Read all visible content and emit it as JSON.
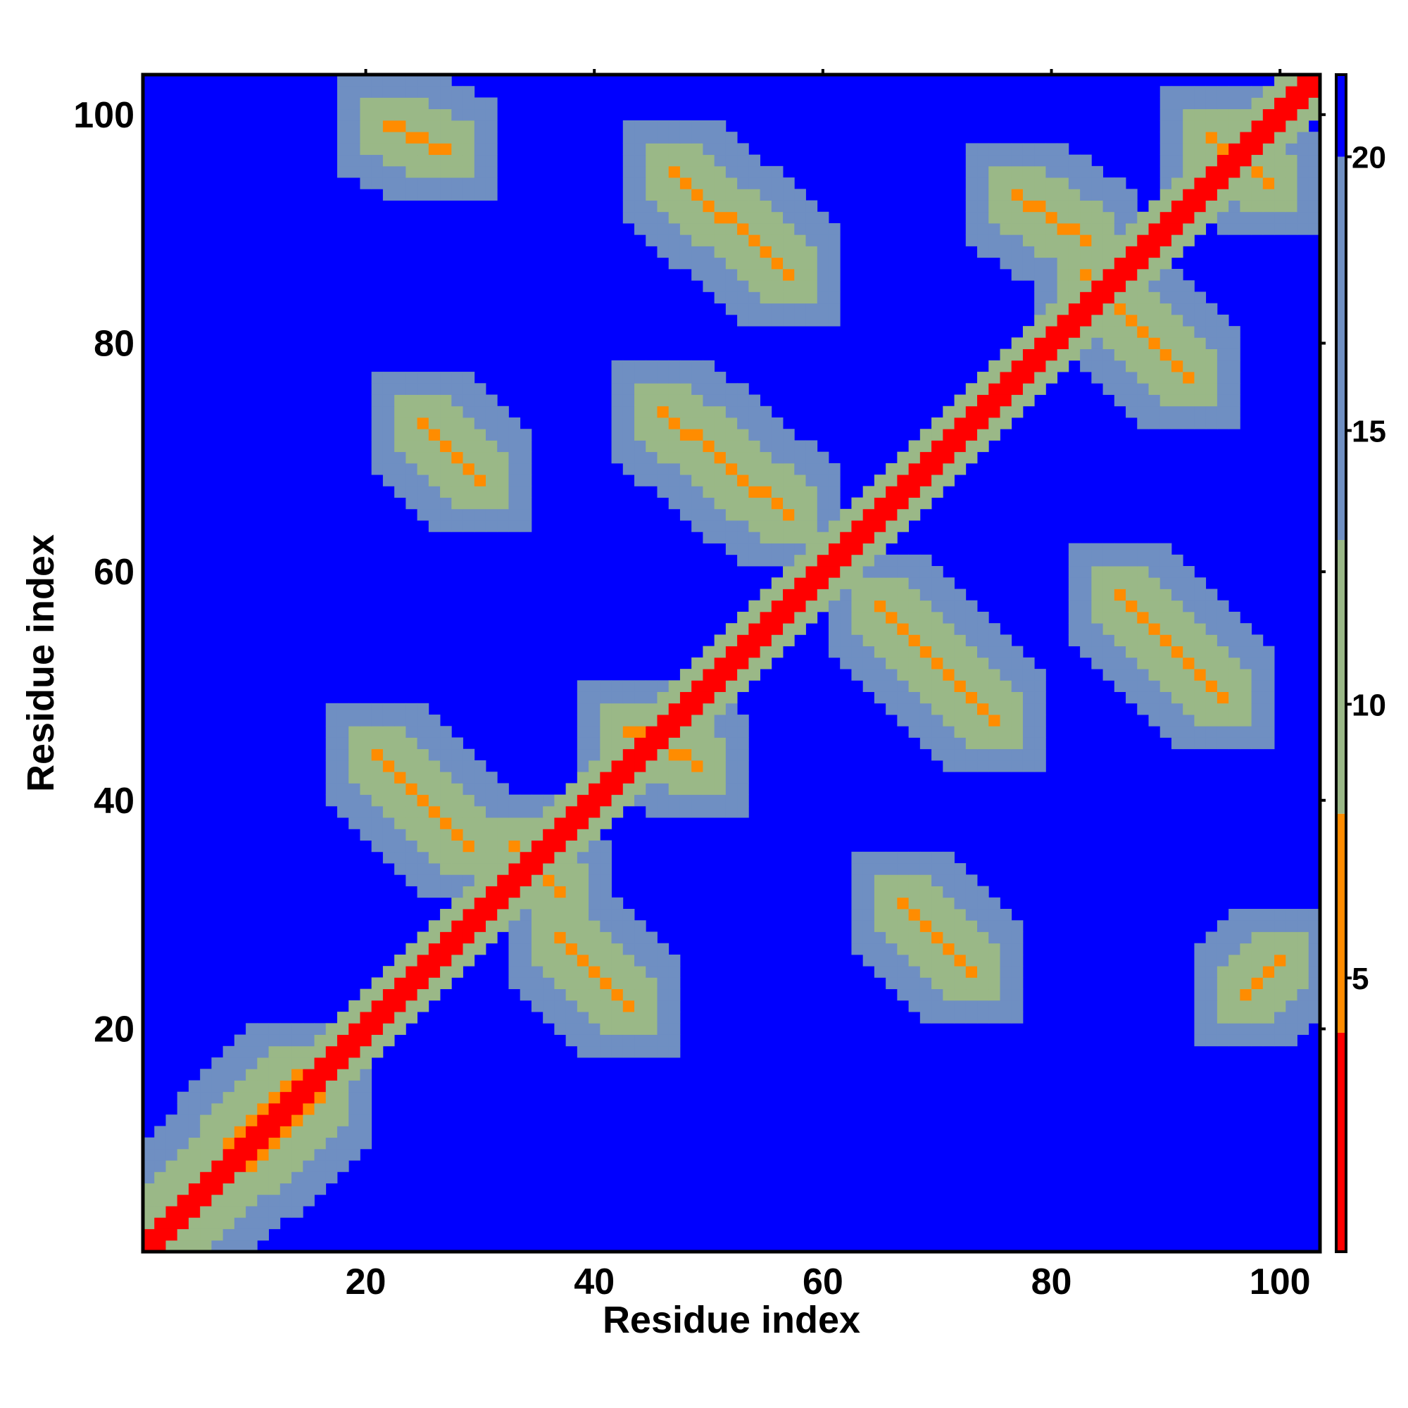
{
  "chart_data": {
    "type": "heatmap",
    "title": "",
    "xlabel": "Residue index",
    "ylabel": "Residue index",
    "n_residues": 103,
    "xlim": [
      1,
      103
    ],
    "ylim": [
      1,
      103
    ],
    "x_ticks": [
      20,
      40,
      60,
      80,
      100
    ],
    "y_ticks": [
      20,
      40,
      60,
      80,
      100
    ],
    "colorbar": {
      "ticks": [
        5,
        10,
        15,
        20
      ],
      "range": [
        0,
        21.5
      ],
      "bands": [
        {
          "min": 0,
          "max": 4,
          "color": "#ff0000"
        },
        {
          "min": 4,
          "max": 8,
          "color": "#ff8c00"
        },
        {
          "min": 8,
          "max": 13,
          "color": "#9ab887"
        },
        {
          "min": 13,
          "max": 20,
          "color": "#6f8fc2"
        },
        {
          "min": 20,
          "max": 21.5,
          "color": "#0000ff"
        }
      ]
    },
    "background_value": 21,
    "background_color": "#0000ff",
    "contact_features": [
      {
        "kind": "diagonal",
        "value": 1
      },
      {
        "kind": "segment",
        "from": [
          1,
          2
        ],
        "to": [
          14,
          16
        ],
        "value": 7
      },
      {
        "kind": "segment",
        "from": [
          2,
          1
        ],
        "to": [
          16,
          14
        ],
        "value": 7
      },
      {
        "kind": "segment",
        "from": [
          21,
          44
        ],
        "to": [
          29,
          36
        ],
        "value": 7
      },
      {
        "kind": "segment",
        "from": [
          22,
          99
        ],
        "to": [
          27,
          97
        ],
        "value": 7
      },
      {
        "kind": "segment",
        "from": [
          25,
          73
        ],
        "to": [
          30,
          68
        ],
        "value": 7
      },
      {
        "kind": "segment",
        "from": [
          33,
          36
        ],
        "to": [
          37,
          32
        ],
        "value": 7
      },
      {
        "kind": "segment",
        "from": [
          37,
          28
        ],
        "to": [
          43,
          22
        ],
        "value": 7
      },
      {
        "kind": "segment",
        "from": [
          46,
          74
        ],
        "to": [
          57,
          65
        ],
        "value": 7
      },
      {
        "kind": "segment",
        "from": [
          47,
          95
        ],
        "to": [
          57,
          86
        ],
        "value": 7
      },
      {
        "kind": "segment",
        "from": [
          43,
          46
        ],
        "to": [
          49,
          43
        ],
        "value": 7
      },
      {
        "kind": "segment",
        "from": [
          65,
          57
        ],
        "to": [
          75,
          47
        ],
        "value": 7
      },
      {
        "kind": "segment",
        "from": [
          67,
          31
        ],
        "to": [
          73,
          25
        ],
        "value": 7
      },
      {
        "kind": "segment",
        "from": [
          77,
          93
        ],
        "to": [
          83,
          89
        ],
        "value": 7
      },
      {
        "kind": "segment",
        "from": [
          83,
          86
        ],
        "to": [
          92,
          77
        ],
        "value": 7
      },
      {
        "kind": "segment",
        "from": [
          86,
          58
        ],
        "to": [
          95,
          49
        ],
        "value": 7
      },
      {
        "kind": "segment",
        "from": [
          97,
          23
        ],
        "to": [
          100,
          26
        ],
        "value": 7
      },
      {
        "kind": "segment",
        "from": [
          94,
          98
        ],
        "to": [
          99,
          94
        ],
        "value": 7
      }
    ]
  }
}
